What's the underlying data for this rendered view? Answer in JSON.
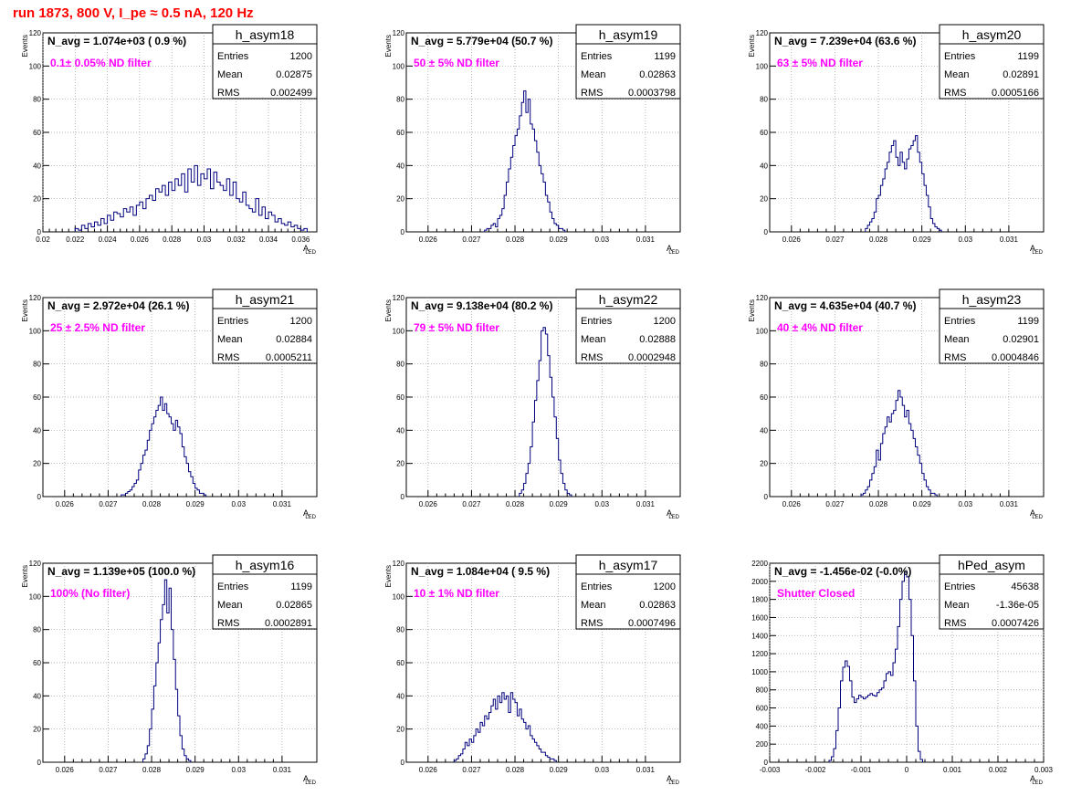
{
  "run_title": "run 1873,   800 V, I_pe ≈ 0.5 nA, 120 Hz",
  "colors": {
    "hist": "#00007f",
    "grid": "#9a9a9a",
    "navg": "#000000",
    "filter": "#ff00ff",
    "title": "#ff0000"
  },
  "stat_labels": {
    "entries": "Entries",
    "mean": "Mean",
    "rms": "RMS"
  },
  "chart_data": [
    {
      "type": "histogram",
      "name": "h_asym18",
      "navg": "N_avg = 1.074e+03 ( 0.9 %)",
      "filter": "0.1± 0.05% ND filter",
      "stats": {
        "entries": "1200",
        "mean": "0.02875",
        "rms": "0.002499"
      },
      "ylabel": "Events",
      "xlabel": "A",
      "xlabel_sub": "LED",
      "xlim": [
        0.02,
        0.037
      ],
      "ylim": [
        0,
        120
      ],
      "xticks": [
        0.02,
        0.022,
        0.024,
        0.026,
        0.028,
        0.03,
        0.032,
        0.034,
        0.036
      ],
      "xtick_labels": [
        "0.02",
        "0.022",
        "0.024",
        "0.026",
        "0.028",
        "0.03",
        "0.032",
        "0.034",
        "0.036"
      ],
      "yticks": [
        0,
        20,
        40,
        60,
        80,
        100,
        120
      ],
      "bin_start": 0.022,
      "bin_width": 0.0002,
      "counts": [
        2,
        1,
        4,
        2,
        5,
        3,
        6,
        4,
        8,
        5,
        10,
        7,
        12,
        11,
        9,
        14,
        12,
        15,
        10,
        16,
        18,
        14,
        20,
        22,
        19,
        26,
        24,
        28,
        22,
        30,
        25,
        32,
        28,
        35,
        24,
        38,
        30,
        40,
        28,
        35,
        32,
        38,
        26,
        36,
        30,
        28,
        25,
        32,
        22,
        30,
        20,
        18,
        24,
        16,
        14,
        12,
        20,
        10,
        15,
        8,
        12,
        10,
        6,
        8,
        5,
        4,
        6,
        3,
        4,
        2,
        1,
        2
      ]
    },
    {
      "type": "histogram",
      "name": "h_asym19",
      "navg": "N_avg = 5.779e+04 (50.7 %)",
      "filter": "50 ± 5% ND filter",
      "stats": {
        "entries": "1199",
        "mean": "0.02863",
        "rms": "0.0003798"
      },
      "ylabel": "Events",
      "xlabel": "A",
      "xlabel_sub": "LED",
      "xlim": [
        0.0255,
        0.0318
      ],
      "ylim": [
        0,
        120
      ],
      "xticks": [
        0.026,
        0.027,
        0.028,
        0.029,
        0.03,
        0.031
      ],
      "xtick_labels": [
        "0.026",
        "0.027",
        "0.028",
        "0.029",
        "0.03",
        "0.031"
      ],
      "yticks": [
        0,
        20,
        40,
        60,
        80,
        100,
        120
      ],
      "bin_start": 0.0273,
      "bin_width": 5e-05,
      "counts": [
        1,
        2,
        2,
        4,
        5,
        3,
        8,
        10,
        14,
        22,
        30,
        38,
        45,
        52,
        58,
        62,
        70,
        78,
        85,
        72,
        80,
        65,
        62,
        55,
        48,
        40,
        35,
        30,
        22,
        18,
        12,
        8,
        5,
        4,
        2,
        2,
        1
      ]
    },
    {
      "type": "histogram",
      "name": "h_asym20",
      "navg": "N_avg = 7.239e+04 (63.6 %)",
      "filter": "63 ± 5% ND filter",
      "stats": {
        "entries": "1199",
        "mean": "0.02891",
        "rms": "0.0005166"
      },
      "ylabel": "Events",
      "xlabel": "A",
      "xlabel_sub": "LED",
      "xlim": [
        0.0255,
        0.0318
      ],
      "ylim": [
        0,
        120
      ],
      "xticks": [
        0.026,
        0.027,
        0.028,
        0.029,
        0.03,
        0.031
      ],
      "xtick_labels": [
        "0.026",
        "0.027",
        "0.028",
        "0.029",
        "0.03",
        "0.031"
      ],
      "yticks": [
        0,
        20,
        40,
        60,
        80,
        100,
        120
      ],
      "bin_start": 0.0277,
      "bin_width": 5e-05,
      "counts": [
        2,
        4,
        6,
        8,
        12,
        20,
        22,
        28,
        32,
        38,
        42,
        48,
        52,
        55,
        45,
        40,
        48,
        42,
        38,
        44,
        50,
        52,
        55,
        58,
        48,
        42,
        35,
        28,
        22,
        15,
        8,
        5,
        3,
        2,
        1
      ]
    },
    {
      "type": "histogram",
      "name": "h_asym21",
      "navg": "N_avg = 2.972e+04 (26.1 %)",
      "filter": "25 ± 2.5% ND filter",
      "stats": {
        "entries": "1200",
        "mean": "0.02884",
        "rms": "0.0005211"
      },
      "ylabel": "Events",
      "xlabel": "A",
      "xlabel_sub": "LED",
      "xlim": [
        0.0255,
        0.0318
      ],
      "ylim": [
        0,
        120
      ],
      "xticks": [
        0.026,
        0.027,
        0.028,
        0.029,
        0.03,
        0.031
      ],
      "xtick_labels": [
        "0.026",
        "0.027",
        "0.028",
        "0.029",
        "0.03",
        "0.031"
      ],
      "yticks": [
        0,
        20,
        40,
        60,
        80,
        100,
        120
      ],
      "bin_start": 0.0273,
      "bin_width": 5e-05,
      "counts": [
        1,
        1,
        2,
        3,
        4,
        6,
        8,
        10,
        16,
        20,
        25,
        28,
        34,
        40,
        44,
        48,
        52,
        55,
        60,
        52,
        56,
        50,
        48,
        44,
        40,
        46,
        42,
        38,
        30,
        24,
        20,
        15,
        12,
        8,
        5,
        4,
        2,
        2,
        1
      ]
    },
    {
      "type": "histogram",
      "name": "h_asym22",
      "navg": "N_avg = 9.138e+04 (80.2 %)",
      "filter": "79 ± 5% ND filter",
      "stats": {
        "entries": "1200",
        "mean": "0.02888",
        "rms": "0.0002948"
      },
      "ylabel": "Events",
      "xlabel": "A",
      "xlabel_sub": "LED",
      "xlim": [
        0.0255,
        0.0318
      ],
      "ylim": [
        0,
        120
      ],
      "xticks": [
        0.026,
        0.027,
        0.028,
        0.029,
        0.03,
        0.031
      ],
      "xtick_labels": [
        "0.026",
        "0.027",
        "0.028",
        "0.029",
        "0.03",
        "0.031"
      ],
      "yticks": [
        0,
        20,
        40,
        60,
        80,
        100,
        120
      ],
      "bin_start": 0.0281,
      "bin_width": 5e-05,
      "counts": [
        2,
        4,
        8,
        14,
        20,
        30,
        45,
        58,
        70,
        82,
        100,
        102,
        98,
        85,
        72,
        60,
        48,
        35,
        22,
        14,
        8,
        4,
        2,
        1
      ]
    },
    {
      "type": "histogram",
      "name": "h_asym23",
      "navg": "N_avg = 4.635e+04 (40.7 %)",
      "filter": "40 ± 4% ND filter",
      "stats": {
        "entries": "1199",
        "mean": "0.02901",
        "rms": "0.0004846"
      },
      "ylabel": "Events",
      "xlabel": "A",
      "xlabel_sub": "LED",
      "xlim": [
        0.0255,
        0.0318
      ],
      "ylim": [
        0,
        120
      ],
      "xticks": [
        0.026,
        0.027,
        0.028,
        0.029,
        0.03,
        0.031
      ],
      "xtick_labels": [
        "0.026",
        "0.027",
        "0.028",
        "0.029",
        "0.03",
        "0.031"
      ],
      "yticks": [
        0,
        20,
        40,
        60,
        80,
        100,
        120
      ],
      "bin_start": 0.0276,
      "bin_width": 5e-05,
      "counts": [
        1,
        2,
        4,
        6,
        10,
        14,
        18,
        28,
        22,
        32,
        38,
        42,
        48,
        45,
        50,
        52,
        58,
        64,
        60,
        55,
        48,
        52,
        44,
        40,
        35,
        30,
        25,
        20,
        14,
        10,
        6,
        4,
        2,
        2,
        1
      ]
    },
    {
      "type": "histogram",
      "name": "h_asym16",
      "navg": "N_avg = 1.139e+05 (100.0 %)",
      "filter": "100% (No filter)",
      "stats": {
        "entries": "1199",
        "mean": "0.02865",
        "rms": "0.0002891"
      },
      "ylabel": "Events",
      "xlabel": "A",
      "xlabel_sub": "LED",
      "xlim": [
        0.0255,
        0.0318
      ],
      "ylim": [
        0,
        120
      ],
      "xticks": [
        0.026,
        0.027,
        0.028,
        0.029,
        0.03,
        0.031
      ],
      "xtick_labels": [
        "0.026",
        "0.027",
        "0.028",
        "0.029",
        "0.03",
        "0.031"
      ],
      "yticks": [
        0,
        20,
        40,
        60,
        80,
        100,
        120
      ],
      "bin_start": 0.0278,
      "bin_width": 5e-05,
      "counts": [
        2,
        5,
        10,
        20,
        32,
        46,
        60,
        72,
        86,
        95,
        110,
        90,
        105,
        80,
        62,
        44,
        28,
        16,
        8,
        4,
        2,
        1
      ]
    },
    {
      "type": "histogram",
      "name": "h_asym17",
      "navg": "N_avg = 1.084e+04 ( 9.5 %)",
      "filter": "10 ± 1% ND filter",
      "stats": {
        "entries": "1200",
        "mean": "0.02863",
        "rms": "0.0007496"
      },
      "ylabel": "Events",
      "xlabel": "A",
      "xlabel_sub": "LED",
      "xlim": [
        0.0255,
        0.0318
      ],
      "ylim": [
        0,
        120
      ],
      "xticks": [
        0.026,
        0.027,
        0.028,
        0.029,
        0.03,
        0.031
      ],
      "xtick_labels": [
        "0.026",
        "0.027",
        "0.028",
        "0.029",
        "0.03",
        "0.031"
      ],
      "yticks": [
        0,
        20,
        40,
        60,
        80,
        100,
        120
      ],
      "bin_start": 0.0266,
      "bin_width": 5e-05,
      "counts": [
        1,
        2,
        4,
        5,
        8,
        12,
        10,
        14,
        12,
        16,
        20,
        18,
        24,
        22,
        28,
        26,
        30,
        34,
        38,
        32,
        40,
        36,
        42,
        38,
        40,
        30,
        42,
        38,
        36,
        28,
        32,
        26,
        24,
        20,
        22,
        16,
        14,
        12,
        10,
        8,
        6,
        6,
        4,
        3,
        2,
        2,
        1
      ]
    },
    {
      "type": "histogram",
      "name": "hPed_asym",
      "navg": "N_avg = -1.456e-02 (-0.0%)",
      "filter": "Shutter Closed",
      "stats": {
        "entries": "45638",
        "mean": "-1.36e-05",
        "rms": "0.0007426"
      },
      "ylabel": "",
      "xlabel": "A",
      "xlabel_sub": "LED",
      "xlim": [
        -0.003,
        0.003
      ],
      "ylim": [
        0,
        2200
      ],
      "xticks": [
        -0.003,
        -0.002,
        -0.001,
        0,
        0.001,
        0.002,
        0.003
      ],
      "xtick_labels": [
        "-0.003",
        "-0.002",
        "-0.001",
        "0",
        "0.001",
        "0.002",
        "0.003"
      ],
      "yticks": [
        0,
        200,
        400,
        600,
        800,
        1000,
        1200,
        1400,
        1600,
        1800,
        2000,
        2200
      ],
      "bin_start": -0.0017,
      "bin_width": 5e-05,
      "counts": [
        20,
        60,
        150,
        350,
        600,
        900,
        1050,
        1120,
        1060,
        900,
        720,
        660,
        700,
        740,
        720,
        700,
        720,
        740,
        760,
        740,
        730,
        770,
        800,
        820,
        900,
        980,
        1000,
        960,
        1100,
        1250,
        1500,
        1800,
        2000,
        2100,
        2050,
        1800,
        1400,
        900,
        400,
        120,
        30
      ]
    }
  ]
}
